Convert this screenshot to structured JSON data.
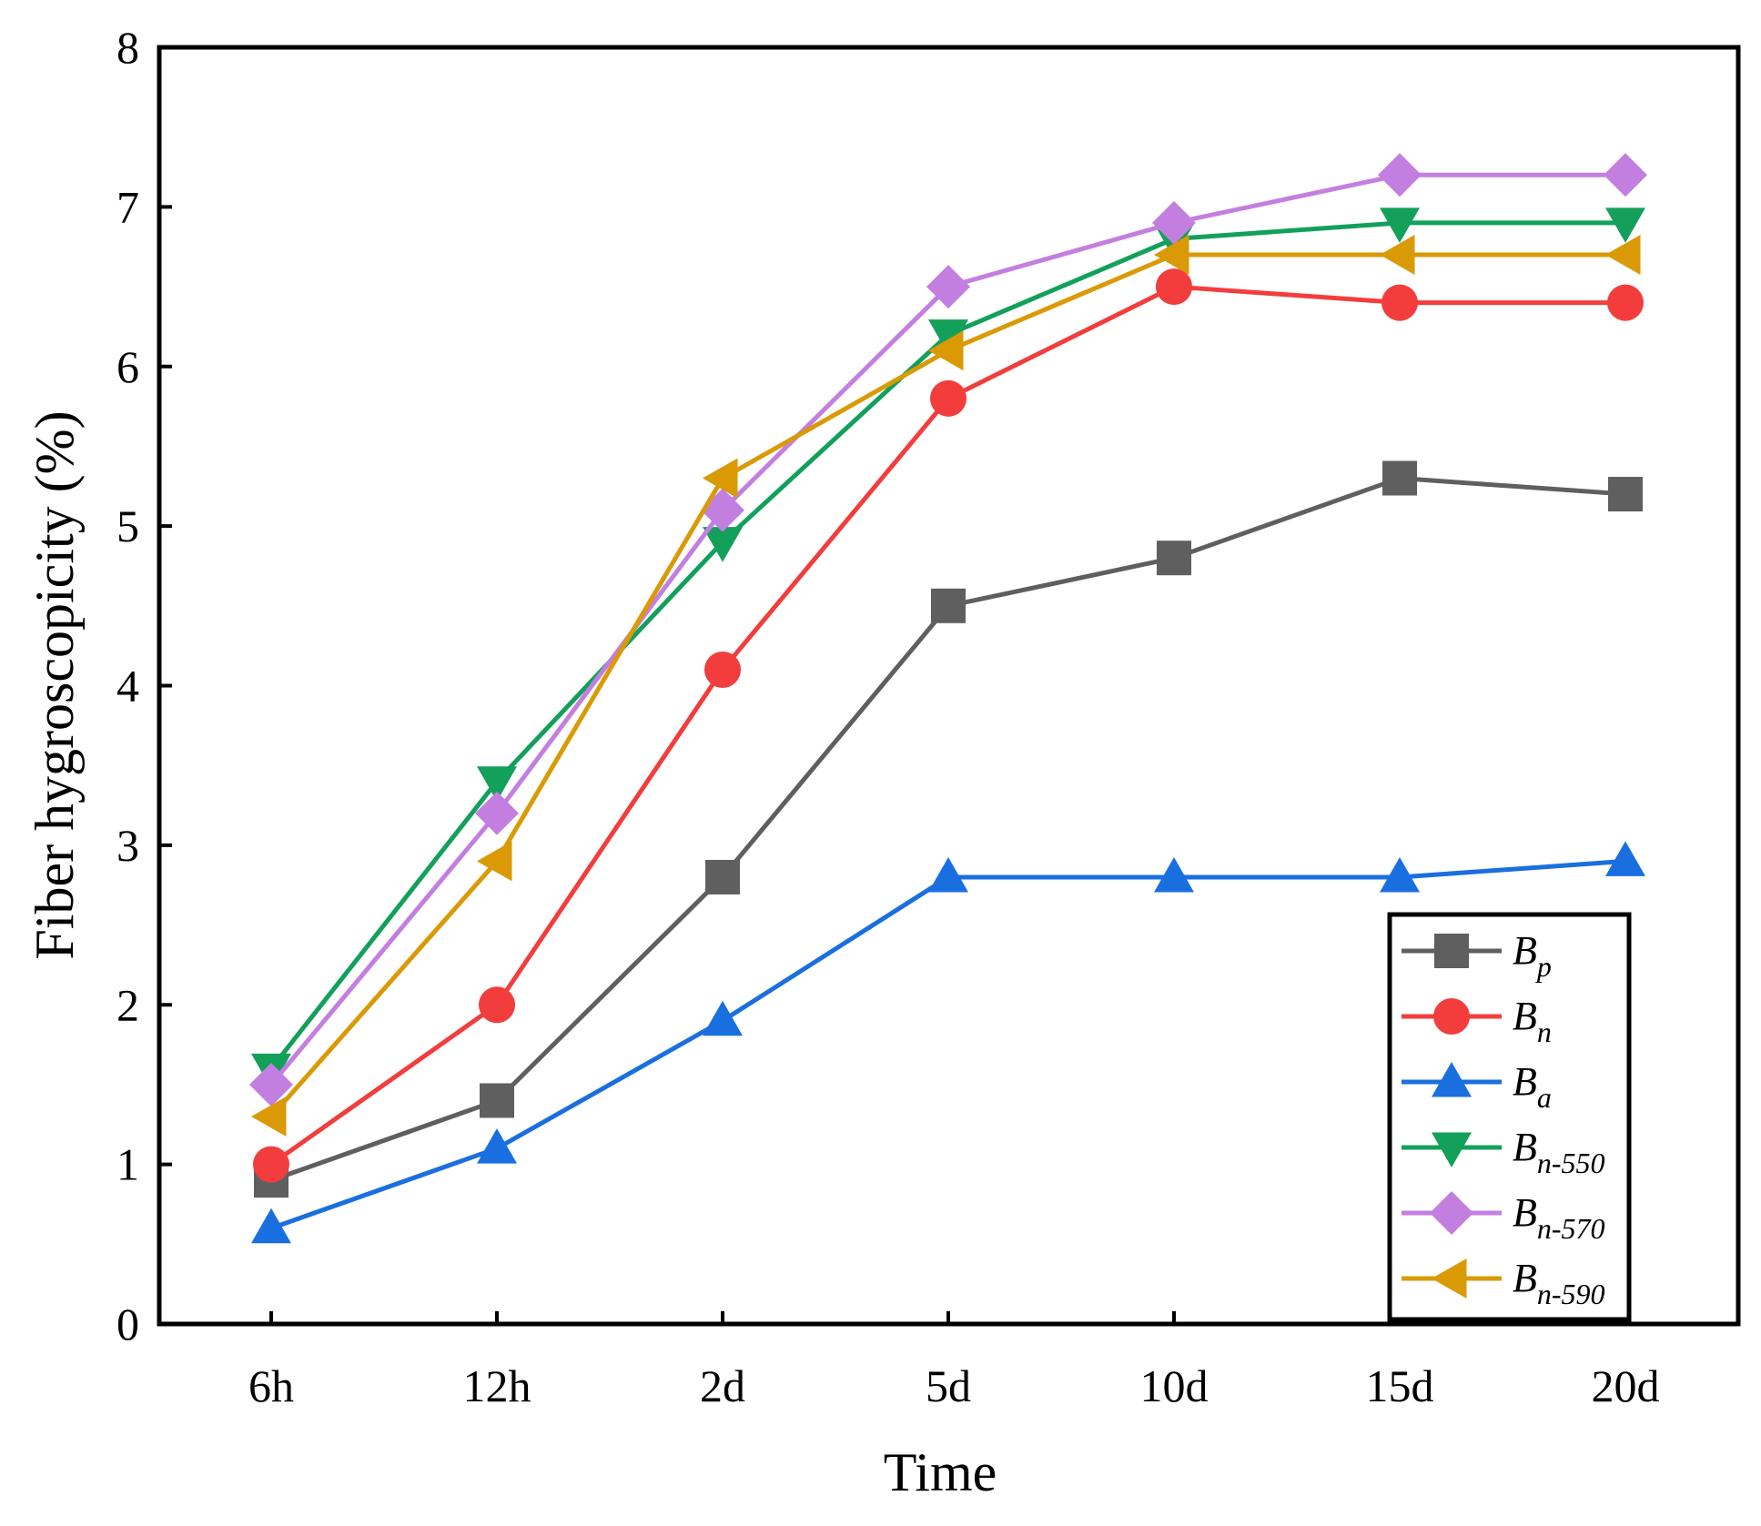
{
  "chart_data": {
    "type": "line",
    "xlabel": "Time",
    "ylabel": "Fiber hygroscopicity (%)",
    "categories": [
      "6h",
      "12h",
      "2d",
      "5d",
      "10d",
      "15d",
      "20d"
    ],
    "ylim": [
      0,
      8
    ],
    "yticks": [
      "0",
      "1",
      "2",
      "3",
      "4",
      "5",
      "6",
      "7",
      "8"
    ],
    "grid": false,
    "legend_position": "bottom-right",
    "series": [
      {
        "name": "Bp",
        "label_base": "B",
        "label_sub": "p",
        "color": "#5f5f5f",
        "marker": "square",
        "values": [
          0.9,
          1.4,
          2.8,
          4.5,
          4.8,
          5.3,
          5.2
        ]
      },
      {
        "name": "Bn",
        "label_base": "B",
        "label_sub": "n",
        "color": "#f33d3d",
        "marker": "circle",
        "values": [
          1.0,
          2.0,
          4.1,
          5.8,
          6.5,
          6.4,
          6.4
        ]
      },
      {
        "name": "Ba",
        "label_base": "B",
        "label_sub": "a",
        "color": "#1a6fe0",
        "marker": "triangle-up",
        "values": [
          0.6,
          1.1,
          1.9,
          2.8,
          2.8,
          2.8,
          2.9
        ]
      },
      {
        "name": "Bn-550",
        "label_base": "B",
        "label_sub": "n-550",
        "color": "#12a05a",
        "marker": "triangle-down",
        "values": [
          1.6,
          3.4,
          4.9,
          6.2,
          6.8,
          6.9,
          6.9
        ]
      },
      {
        "name": "Bn-570",
        "label_base": "B",
        "label_sub": "n-570",
        "color": "#c37fe0",
        "marker": "diamond",
        "values": [
          1.5,
          3.2,
          5.1,
          6.5,
          6.9,
          7.2,
          7.2
        ]
      },
      {
        "name": "Bn-590",
        "label_base": "B",
        "label_sub": "n-590",
        "color": "#d99a06",
        "marker": "triangle-left",
        "values": [
          1.3,
          2.9,
          5.3,
          6.1,
          6.7,
          6.7,
          6.7
        ]
      }
    ]
  }
}
